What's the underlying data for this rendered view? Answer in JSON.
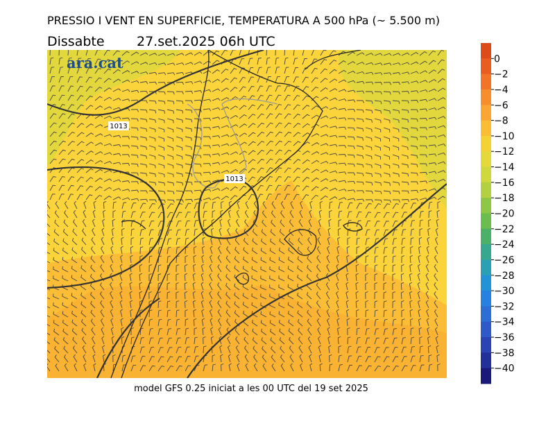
{
  "header": {
    "title": "PRESSIO I VENT EN SUPERFICIE, TEMPERATURA A 500 hPa (~ 5.500 m)",
    "day": "Dissabte",
    "date": "27.set.2025 06h UTC"
  },
  "logo": "ara.cat",
  "isobar_labels": [
    "1013",
    "1013"
  ],
  "colorbar": {
    "labels": [
      "0",
      "−2",
      "−4",
      "−6",
      "−8",
      "−10",
      "−12",
      "−14",
      "−16",
      "−18",
      "−20",
      "−22",
      "−24",
      "−26",
      "−28",
      "−30",
      "−32",
      "−34",
      "−36",
      "−38",
      "−40"
    ],
    "colors": [
      "#dd4b1a",
      "#e95e20",
      "#f27527",
      "#f68e2c",
      "#f9a632",
      "#fbbd36",
      "#f5d136",
      "#e4d83a",
      "#cfd83d",
      "#b2d03f",
      "#8ec645",
      "#6bbd4d",
      "#4cb168",
      "#35a88f",
      "#2aa0b5",
      "#2393d8",
      "#2781e0",
      "#2d6ed6",
      "#2e59c8",
      "#2b44b3",
      "#22309a",
      "#1a1a7a"
    ]
  },
  "footer": "model GFS 0.25 iniciat a les 00 UTC del 19 set 2025"
}
